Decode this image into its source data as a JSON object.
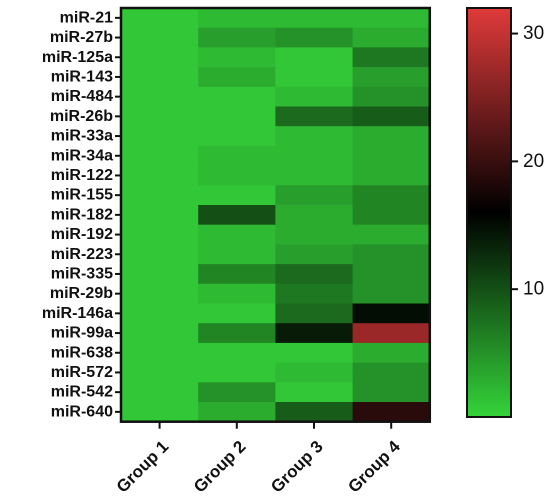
{
  "chart_data": {
    "type": "heatmap",
    "rows": [
      "miR-21",
      "miR-27b",
      "miR-125a",
      "miR-143",
      "miR-484",
      "miR-26b",
      "miR-33a",
      "miR-34a",
      "miR-122",
      "miR-155",
      "miR-182",
      "miR-192",
      "miR-223",
      "miR-335",
      "miR-29b",
      "miR-146a",
      "miR-99a",
      "miR-638",
      "miR-572",
      "miR-542",
      "miR-640"
    ],
    "columns": [
      "Group 1",
      "Group 2",
      "Group 3",
      "Group 4"
    ],
    "values": [
      [
        1,
        2,
        2,
        2
      ],
      [
        1,
        4,
        5,
        3
      ],
      [
        1,
        2,
        1,
        7
      ],
      [
        1,
        3,
        1,
        4
      ],
      [
        1,
        1,
        2,
        5
      ],
      [
        1,
        1,
        8,
        9
      ],
      [
        1,
        1,
        2,
        3
      ],
      [
        1,
        2,
        2,
        3
      ],
      [
        1,
        2,
        2,
        3
      ],
      [
        1,
        1,
        4,
        6
      ],
      [
        1,
        10,
        3,
        6
      ],
      [
        1,
        2,
        3,
        3
      ],
      [
        1,
        2,
        4,
        5
      ],
      [
        1,
        6,
        8,
        5
      ],
      [
        1,
        2,
        7,
        5
      ],
      [
        1,
        1,
        8,
        15
      ],
      [
        1,
        6,
        14,
        27
      ],
      [
        1,
        1,
        1,
        3
      ],
      [
        1,
        1,
        2,
        5
      ],
      [
        1,
        5,
        1,
        5
      ],
      [
        1,
        3,
        9,
        19
      ]
    ],
    "colorbar": {
      "min": 0,
      "max": 32,
      "ticks": [
        10,
        20,
        30
      ],
      "colors": [
        "#35d43a",
        "#000000",
        "#e03a3a"
      ]
    },
    "title": "",
    "xlabel": "",
    "ylabel": ""
  }
}
